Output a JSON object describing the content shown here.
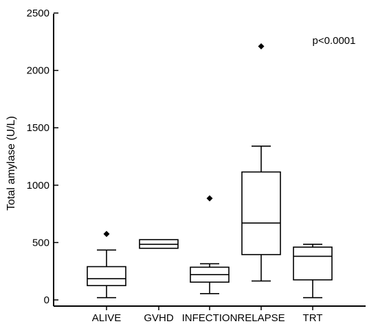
{
  "chart_data": {
    "type": "boxplot",
    "title": "",
    "xlabel": "",
    "ylabel": "Total amylase (U/L)",
    "ylim": [
      0,
      2500
    ],
    "yticks": [
      0,
      500,
      1000,
      1500,
      2000,
      2500
    ],
    "grid": false,
    "legend": "none",
    "annotation": "p<0.0001",
    "categories": [
      "ALIVE",
      "GVHD",
      "INFECTION",
      "RELAPSE",
      "TRT"
    ],
    "boxes": [
      {
        "category": "ALIVE",
        "whisker_low": 20,
        "q1": 125,
        "median": 185,
        "q3": 290,
        "whisker_high": 435,
        "outliers": [
          575
        ]
      },
      {
        "category": "GVHD",
        "whisker_low": 450,
        "q1": 450,
        "median": 485,
        "q3": 525,
        "whisker_high": 525,
        "outliers": []
      },
      {
        "category": "INFECTION",
        "whisker_low": 55,
        "q1": 155,
        "median": 220,
        "q3": 285,
        "whisker_high": 315,
        "outliers": [
          885
        ]
      },
      {
        "category": "RELAPSE",
        "whisker_low": 165,
        "q1": 395,
        "median": 670,
        "q3": 1115,
        "whisker_high": 1340,
        "outliers": [
          2210
        ]
      },
      {
        "category": "TRT",
        "whisker_low": 20,
        "q1": 175,
        "median": 380,
        "q3": 460,
        "whisker_high": 485,
        "outliers": []
      }
    ]
  }
}
